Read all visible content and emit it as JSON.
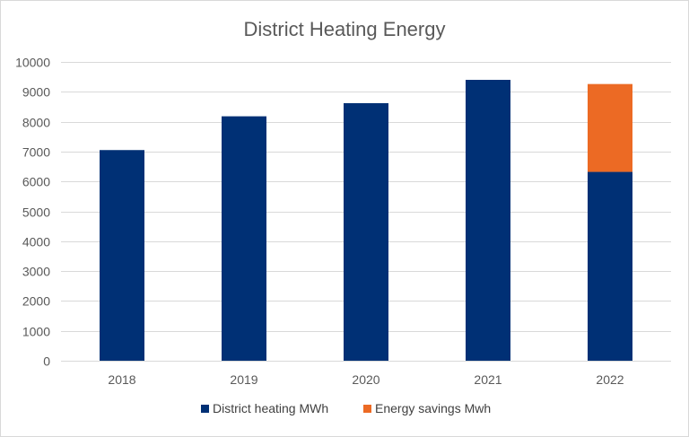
{
  "chart_data": {
    "type": "bar",
    "stacked": true,
    "title": "District Heating Energy",
    "xlabel": "",
    "ylabel": "",
    "categories": [
      "2018",
      "2019",
      "2020",
      "2021",
      "2022"
    ],
    "series": [
      {
        "name": "District heating MWh",
        "color": "#003075",
        "values": [
          7050,
          8180,
          8620,
          9400,
          6320
        ]
      },
      {
        "name": "Energy savings Mwh",
        "color": "#ec6a24",
        "values": [
          0,
          0,
          0,
          0,
          2940
        ]
      }
    ],
    "ylim": [
      0,
      10000
    ],
    "yticks": [
      0,
      1000,
      2000,
      3000,
      4000,
      5000,
      6000,
      7000,
      8000,
      9000,
      10000
    ],
    "grid": true,
    "legend_position": "bottom"
  }
}
